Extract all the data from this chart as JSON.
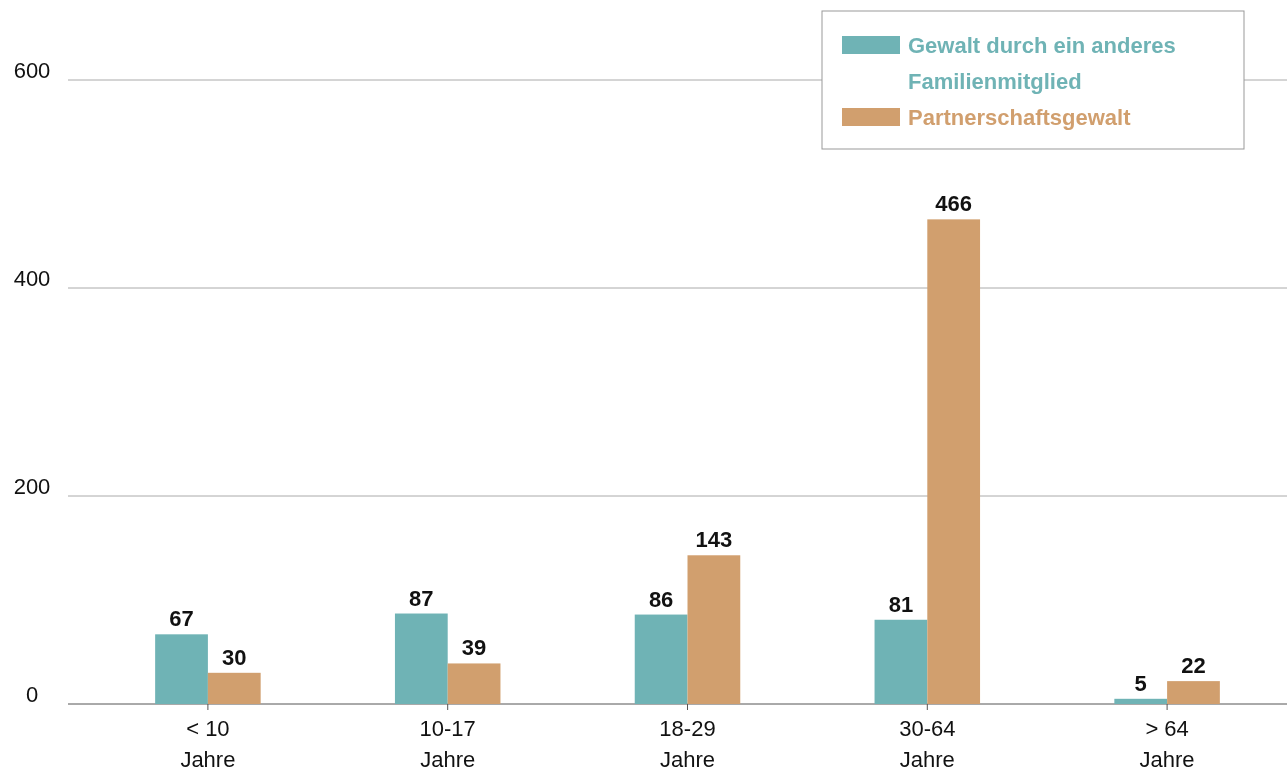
{
  "chart_data": {
    "type": "bar",
    "categories": [
      "< 10\nJahre",
      "10-17\nJahre",
      "18-29\nJahre",
      "30-64\nJahre",
      "> 64\nJahre"
    ],
    "series": [
      {
        "name": "Gewalt durch ein anderes Familienmitglied",
        "color": "#6fb3b5",
        "values": [
          67,
          87,
          86,
          81,
          5
        ]
      },
      {
        "name": "Partnerschaftsgewalt",
        "color": "#d19f6e",
        "values": [
          30,
          39,
          143,
          466,
          22
        ]
      }
    ],
    "ylim": [
      0,
      600
    ],
    "yticks": [
      0,
      200,
      400,
      600
    ],
    "grid": "y",
    "legend": "top right",
    "data_labels": true
  }
}
